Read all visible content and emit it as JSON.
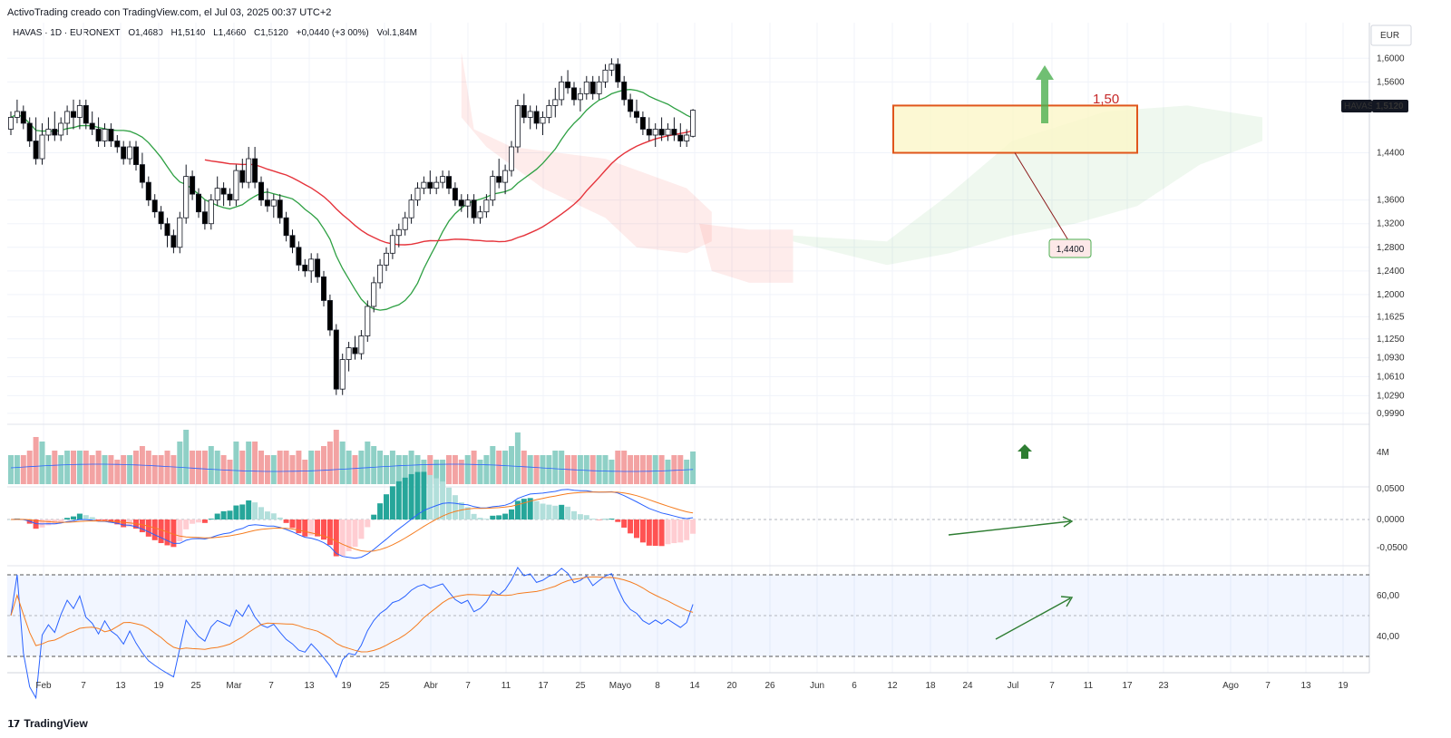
{
  "header": {
    "credit": "ActivoTrading creado con TradingView.com, el Jul 03, 2025 00:37 UTC+2"
  },
  "legend": {
    "symbol": "HAVAS · 1D · EURONEXT",
    "open": "O1,4680",
    "high": "H1,5140",
    "low": "L1,4660",
    "close": "C1,5120",
    "change": "+0,0440 (+3,00%)",
    "volume": "Vol.1,84M"
  },
  "footer": {
    "brand": "TradingView"
  },
  "colors": {
    "up": "#ffffff",
    "down": "#000000",
    "ma_fast": "#2ea043",
    "ma_slow": "#e5333b",
    "macd_line": "#2962ff",
    "signal_line": "#f57c1f",
    "rsi_line": "#2962ff",
    "rsi_ma": "#f57c1f",
    "vol_up": "#8fd0c6",
    "vol_down": "#f3a3a3",
    "annotation_box": "#e0561b",
    "annotation_fill": "#fbf6c8",
    "annotation_text": "#c62828",
    "arrow_green": "#4caf50"
  },
  "chart_data": {
    "type": "candlestick",
    "symbol": "HAVAS",
    "interval": "1D",
    "exchange": "EURONEXT",
    "currency": "EUR",
    "last_price_label": "1,5120",
    "symbol_tag": "HAVAS",
    "y_ticks": [
      "1,6000",
      "1,5600",
      "1,4400",
      "1,3600",
      "1,3200",
      "1,2800",
      "1,2400",
      "1,2000",
      "1,1625",
      "1,1250",
      "1,0930",
      "1,0610",
      "1,0290",
      "0,9990"
    ],
    "y_ticks_values": [
      1.6,
      1.56,
      1.44,
      1.36,
      1.32,
      1.28,
      1.24,
      1.2,
      1.1625,
      1.125,
      1.093,
      1.061,
      1.029,
      0.999
    ],
    "x_ticks": [
      "Feb",
      "7",
      "13",
      "19",
      "25",
      "Mar",
      "7",
      "13",
      "19",
      "25",
      "Abr",
      "7",
      "11",
      "17",
      "25",
      "Mayo",
      "8",
      "14",
      "20",
      "26",
      "Jun",
      "6",
      "12",
      "18",
      "24",
      "Jul",
      "7",
      "11",
      "17",
      "23",
      "Ago",
      "7",
      "13",
      "19"
    ],
    "candles": [
      [
        1.48,
        1.51,
        1.47,
        1.5
      ],
      [
        1.5,
        1.53,
        1.49,
        1.51
      ],
      [
        1.51,
        1.52,
        1.48,
        1.49
      ],
      [
        1.49,
        1.5,
        1.45,
        1.46
      ],
      [
        1.46,
        1.5,
        1.42,
        1.43
      ],
      [
        1.43,
        1.49,
        1.42,
        1.47
      ],
      [
        1.47,
        1.5,
        1.46,
        1.48
      ],
      [
        1.48,
        1.51,
        1.46,
        1.47
      ],
      [
        1.47,
        1.5,
        1.46,
        1.49
      ],
      [
        1.49,
        1.52,
        1.47,
        1.51
      ],
      [
        1.51,
        1.53,
        1.48,
        1.5
      ],
      [
        1.5,
        1.53,
        1.48,
        1.52
      ],
      [
        1.52,
        1.53,
        1.48,
        1.49
      ],
      [
        1.49,
        1.51,
        1.47,
        1.48
      ],
      [
        1.48,
        1.5,
        1.45,
        1.46
      ],
      [
        1.46,
        1.49,
        1.45,
        1.48
      ],
      [
        1.48,
        1.49,
        1.45,
        1.46
      ],
      [
        1.46,
        1.47,
        1.44,
        1.45
      ],
      [
        1.45,
        1.46,
        1.42,
        1.43
      ],
      [
        1.43,
        1.46,
        1.42,
        1.45
      ],
      [
        1.45,
        1.46,
        1.41,
        1.42
      ],
      [
        1.42,
        1.44,
        1.38,
        1.39
      ],
      [
        1.39,
        1.4,
        1.35,
        1.36
      ],
      [
        1.36,
        1.37,
        1.33,
        1.34
      ],
      [
        1.34,
        1.35,
        1.31,
        1.32
      ],
      [
        1.32,
        1.33,
        1.28,
        1.3
      ],
      [
        1.3,
        1.31,
        1.27,
        1.28
      ],
      [
        1.28,
        1.34,
        1.27,
        1.33
      ],
      [
        1.33,
        1.42,
        1.32,
        1.4
      ],
      [
        1.4,
        1.41,
        1.36,
        1.37
      ],
      [
        1.37,
        1.38,
        1.33,
        1.34
      ],
      [
        1.34,
        1.36,
        1.31,
        1.32
      ],
      [
        1.32,
        1.37,
        1.31,
        1.36
      ],
      [
        1.36,
        1.4,
        1.35,
        1.38
      ],
      [
        1.38,
        1.39,
        1.35,
        1.37
      ],
      [
        1.37,
        1.38,
        1.35,
        1.36
      ],
      [
        1.36,
        1.42,
        1.35,
        1.41
      ],
      [
        1.41,
        1.43,
        1.38,
        1.39
      ],
      [
        1.39,
        1.45,
        1.38,
        1.43
      ],
      [
        1.43,
        1.45,
        1.38,
        1.39
      ],
      [
        1.39,
        1.4,
        1.35,
        1.36
      ],
      [
        1.36,
        1.38,
        1.34,
        1.35
      ],
      [
        1.35,
        1.37,
        1.33,
        1.36
      ],
      [
        1.36,
        1.37,
        1.32,
        1.33
      ],
      [
        1.33,
        1.34,
        1.29,
        1.3
      ],
      [
        1.3,
        1.31,
        1.27,
        1.28
      ],
      [
        1.28,
        1.29,
        1.24,
        1.25
      ],
      [
        1.25,
        1.26,
        1.23,
        1.24
      ],
      [
        1.24,
        1.27,
        1.22,
        1.26
      ],
      [
        1.26,
        1.27,
        1.22,
        1.23
      ],
      [
        1.23,
        1.24,
        1.18,
        1.19
      ],
      [
        1.19,
        1.2,
        1.13,
        1.14
      ],
      [
        1.14,
        1.15,
        1.03,
        1.04
      ],
      [
        1.04,
        1.1,
        1.03,
        1.09
      ],
      [
        1.09,
        1.12,
        1.07,
        1.11
      ],
      [
        1.11,
        1.13,
        1.09,
        1.1
      ],
      [
        1.1,
        1.14,
        1.09,
        1.13
      ],
      [
        1.13,
        1.19,
        1.12,
        1.18
      ],
      [
        1.18,
        1.23,
        1.17,
        1.22
      ],
      [
        1.22,
        1.26,
        1.21,
        1.25
      ],
      [
        1.25,
        1.28,
        1.24,
        1.27
      ],
      [
        1.27,
        1.31,
        1.26,
        1.3
      ],
      [
        1.3,
        1.32,
        1.28,
        1.31
      ],
      [
        1.31,
        1.34,
        1.3,
        1.33
      ],
      [
        1.33,
        1.37,
        1.32,
        1.36
      ],
      [
        1.36,
        1.39,
        1.35,
        1.38
      ],
      [
        1.38,
        1.4,
        1.37,
        1.39
      ],
      [
        1.39,
        1.41,
        1.37,
        1.38
      ],
      [
        1.38,
        1.4,
        1.37,
        1.39
      ],
      [
        1.39,
        1.41,
        1.38,
        1.4
      ],
      [
        1.4,
        1.41,
        1.37,
        1.38
      ],
      [
        1.38,
        1.39,
        1.35,
        1.36
      ],
      [
        1.36,
        1.37,
        1.34,
        1.35
      ],
      [
        1.35,
        1.37,
        1.33,
        1.36
      ],
      [
        1.36,
        1.37,
        1.32,
        1.33
      ],
      [
        1.33,
        1.35,
        1.32,
        1.34
      ],
      [
        1.34,
        1.37,
        1.33,
        1.36
      ],
      [
        1.36,
        1.41,
        1.35,
        1.4
      ],
      [
        1.4,
        1.43,
        1.38,
        1.39
      ],
      [
        1.39,
        1.42,
        1.37,
        1.41
      ],
      [
        1.41,
        1.46,
        1.4,
        1.45
      ],
      [
        1.45,
        1.53,
        1.44,
        1.52
      ],
      [
        1.52,
        1.54,
        1.49,
        1.5
      ],
      [
        1.5,
        1.52,
        1.48,
        1.51
      ],
      [
        1.51,
        1.52,
        1.48,
        1.49
      ],
      [
        1.49,
        1.51,
        1.47,
        1.5
      ],
      [
        1.5,
        1.53,
        1.49,
        1.52
      ],
      [
        1.52,
        1.55,
        1.5,
        1.53
      ],
      [
        1.53,
        1.57,
        1.52,
        1.56
      ],
      [
        1.56,
        1.58,
        1.54,
        1.55
      ],
      [
        1.55,
        1.56,
        1.52,
        1.53
      ],
      [
        1.53,
        1.55,
        1.51,
        1.54
      ],
      [
        1.54,
        1.57,
        1.53,
        1.56
      ],
      [
        1.56,
        1.57,
        1.53,
        1.54
      ],
      [
        1.54,
        1.57,
        1.53,
        1.56
      ],
      [
        1.56,
        1.59,
        1.55,
        1.58
      ],
      [
        1.58,
        1.6,
        1.57,
        1.59
      ],
      [
        1.59,
        1.6,
        1.55,
        1.56
      ],
      [
        1.56,
        1.57,
        1.52,
        1.53
      ],
      [
        1.53,
        1.54,
        1.5,
        1.51
      ],
      [
        1.51,
        1.53,
        1.49,
        1.5
      ],
      [
        1.5,
        1.51,
        1.47,
        1.48
      ],
      [
        1.48,
        1.5,
        1.46,
        1.47
      ],
      [
        1.47,
        1.49,
        1.45,
        1.48
      ],
      [
        1.48,
        1.5,
        1.46,
        1.47
      ],
      [
        1.47,
        1.49,
        1.46,
        1.48
      ],
      [
        1.48,
        1.5,
        1.46,
        1.47
      ],
      [
        1.47,
        1.49,
        1.45,
        1.46
      ],
      [
        1.46,
        1.48,
        1.45,
        1.47
      ],
      [
        1.468,
        1.514,
        1.466,
        1.512
      ]
    ],
    "annotations": {
      "box_label": "1,50",
      "support_label": "1,4400"
    },
    "volume_axis_label": "4M",
    "macd_axis": [
      "0,0500",
      "0,0000",
      "-0,0500"
    ],
    "rsi_axis": [
      "60,00",
      "40,00"
    ]
  }
}
